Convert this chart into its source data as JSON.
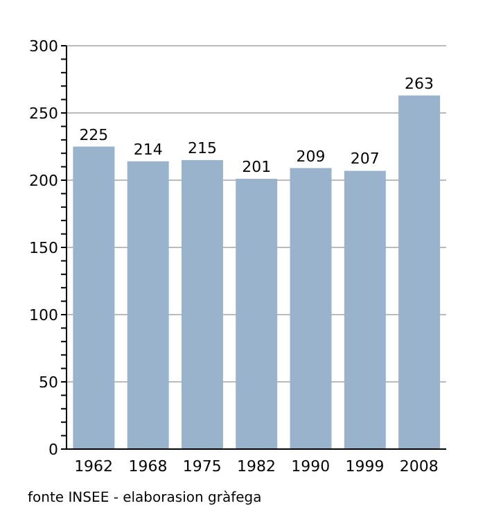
{
  "chart_data": {
    "type": "bar",
    "categories": [
      "1962",
      "1968",
      "1975",
      "1982",
      "1990",
      "1999",
      "2008"
    ],
    "values": [
      225,
      214,
      215,
      201,
      209,
      207,
      263
    ],
    "color": "#9ab3cc",
    "data_labels": true,
    "ylim": [
      0,
      300
    ],
    "yticks": [
      0,
      {
        "value": 10,
        "label": null
      },
      {
        "value": 20,
        "label": null
      },
      {
        "value": 30,
        "label": null
      },
      {
        "value": 40,
        "label": null
      },
      50,
      {
        "value": 60,
        "label": null
      },
      {
        "value": 70,
        "label": null
      },
      {
        "value": 80,
        "label": null
      },
      {
        "value": 90,
        "label": null
      },
      100,
      {
        "value": 110,
        "label": null
      },
      {
        "value": 120,
        "label": null
      },
      {
        "value": 130,
        "label": null
      },
      {
        "value": 140,
        "label": null
      },
      150,
      {
        "value": 160,
        "label": null
      },
      {
        "value": 170,
        "label": null
      },
      {
        "value": 180,
        "label": null
      },
      {
        "value": 190,
        "label": null
      },
      200,
      {
        "value": 210,
        "label": null
      },
      {
        "value": 220,
        "label": null
      },
      {
        "value": 230,
        "label": null
      },
      {
        "value": 240,
        "label": null
      },
      250,
      {
        "value": 260,
        "label": null
      },
      {
        "value": 270,
        "label": null
      },
      {
        "value": 280,
        "label": null
      },
      {
        "value": 290,
        "label": null
      },
      300
    ],
    "grid": "y",
    "annotations": [
      "fonte INSEE - elaborasion gràfega"
    ]
  }
}
